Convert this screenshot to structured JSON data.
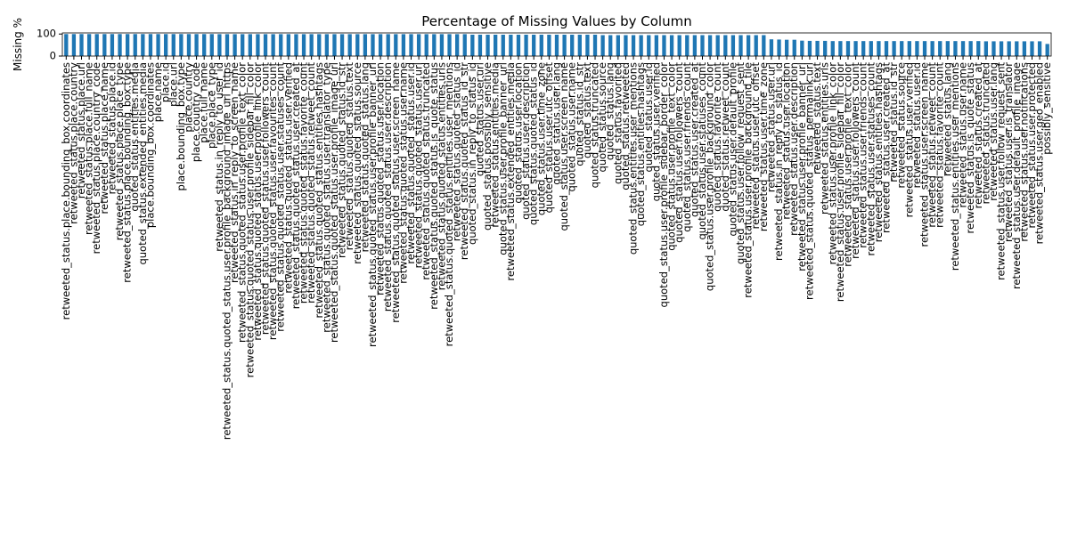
{
  "chart_data": {
    "type": "bar",
    "title": "Percentage of Missing Values by Column",
    "y_label": "Missing %",
    "color": "#1f77b4",
    "ylim": [
      0,
      105
    ],
    "yticks": [
      0,
      100
    ],
    "grid": false,
    "categories": [
      "retweeted_status.place.bounding_box.coordinates",
      "retweeted_status.place.country",
      "retweeted_status.place.url",
      "retweeted_status.place.full_name",
      "retweeted_status.place.country_code",
      "retweeted_status.place.name",
      "retweeted_status.place.id",
      "retweeted_status.place.place_type",
      "retweeted_status.place.bounding_box.type",
      "quoted_status.entities.media",
      "quoted_status.extended_entities.media",
      "place.bounding_box.coordinates",
      "place.name",
      "place.id",
      "place.url",
      "place.bounding_box.type",
      "place.country",
      "place.country_code",
      "place.full_name",
      "place.place_type",
      "retweeted_status.in_reply_to_user_id",
      "retweeted_status.quoted_status.user.profile_background_image_url_https",
      "retweeted_status.in_reply_to_screen_name",
      "retweeted_status.quoted_status.user.profile_text_color",
      "retweeted_status.quoted_status.user.profile_sidebar_fill_color",
      "retweeted_status.quoted_status.user.profile_link_color",
      "retweeted_status.quoted_status.user.followers_count",
      "retweeted_status.quoted_status.user.favourites_count",
      "retweeted_status.quoted_status.user.statuses_count",
      "retweeted_status.quoted_status.user.verified",
      "retweeted_status.quoted_status.user.created_at",
      "retweeted_status.quoted_status.favorite_count",
      "retweeted_status.quoted_status.retweet_count",
      "retweeted_status.quoted_status.entities.hashtags",
      "retweeted_status.quoted_status.user.translator_type",
      "retweeted_status.quoted_status.user.profile_image_url",
      "retweeted_status.quoted_status.id_str",
      "retweeted_status.quoted_status.text",
      "retweeted_status.quoted_status.source",
      "retweeted_status.quoted_status.lang",
      "retweeted_status.quoted_status.user.profile_banner_url",
      "retweeted_status.quoted_status.user.location",
      "retweeted_status.quoted_status.user.description",
      "retweeted_status.quoted_status.user.screen_name",
      "retweeted_status.quoted_status.user.name",
      "retweeted_status.quoted_status.user.id",
      "retweeted_status.quoted_status.user.url",
      "retweeted_status.quoted_status.truncated",
      "retweeted_status.quoted_status.is_quote_status",
      "retweeted_status.quoted_status.entities.urls",
      "retweeted_status.quoted_status.entities.user_mentions",
      "retweeted_status.quoted_status_id",
      "retweeted_status.quoted_status_id_str",
      "quoted_status.in_reply_to_status_id",
      "quoted_status.user.url",
      "quoted_status.possibly_sensitive",
      "retweeted_status.entities.media",
      "quoted_status.user.profile_banner_url",
      "retweeted_status.extended_entities.media",
      "quoted_status.user.location",
      "quoted_status.user.description",
      "quoted_status.quoted_status_id",
      "quoted_status.user.time_zone",
      "quoted_status.user.utc_offset",
      "quoted_status.user.lang",
      "quoted_status.user.screen_name",
      "quoted_status.user.name",
      "quoted_status.id_str",
      "quoted_status.text",
      "quoted_status.truncated",
      "quoted_status.source",
      "quoted_status.lang",
      "quoted_status.favorited",
      "quoted_status.retweeted",
      "quoted_status.entities.user_mentions",
      "quoted_status.entities.hashtags",
      "quoted_status.user.id",
      "quoted_status.user.verified",
      "quoted_status.user.profile_sidebar_border_color",
      "quoted_status.user.profile_text_color",
      "quoted_status.user.followers_count",
      "quoted_status.user.friends_count",
      "quoted_status.user.created_at",
      "quoted_status.user.statuses_count",
      "quoted_status.user.profile_background_color",
      "quoted_status.favorite_count",
      "quoted_status.retweet_count",
      "quoted_status.user.default_profile",
      "quoted_status.user.follow_request_sent",
      "retweeted_status.user.profile_background_tile",
      "retweeted_status.user.utc_offset",
      "retweeted_status.user.time_zone",
      "retweeted_status.user.url",
      "retweeted_status.in_reply_to_status_id",
      "retweeted_status.user.location",
      "retweeted_status.user.description",
      "retweeted_status.user.profile_banner_url",
      "retweeted_status.quoted_status_permalink.url",
      "retweeted_status.text",
      "retweeted_status.entities.urls",
      "retweeted_status.user.profile_link_color",
      "retweeted_status.user.profile_sidebar_fill_color",
      "retweeted_status.user.profile_text_color",
      "retweeted_status.user.followers_count",
      "retweeted_status.user.friends_count",
      "retweeted_status.user.statuses_count",
      "retweeted_status.entities.hashtags",
      "retweeted_status.user.created_at",
      "retweeted_status.id_str",
      "retweeted_status.source",
      "retweeted_status.user.verified",
      "retweeted_status.user.id",
      "retweeted_status.user.screen_name",
      "retweeted_status.retweet_count",
      "retweeted_status.favorite_count",
      "retweeted_status.lang",
      "retweeted_status.entities.user_mentions",
      "retweeted_status.user.name",
      "retweeted_status.is_quote_status",
      "retweeted_status.created_at",
      "retweeted_status.truncated",
      "retweeted_status.user.lang",
      "retweeted_status.user.follow_request_sent",
      "retweeted_status.user.is_translator",
      "retweeted_status.user.default_profile_image",
      "retweeted_status.user.notifications",
      "retweeted_status.user.protected",
      "retweeted_status.user.geo_enabled",
      "possibly_sensitive"
    ],
    "values": [
      99.9,
      99.9,
      99.9,
      99.9,
      99.9,
      99.9,
      99.9,
      99.9,
      99.9,
      99.9,
      99.9,
      99.9,
      99.9,
      99.9,
      99.9,
      99.9,
      99.9,
      99.9,
      99.9,
      99.9,
      99.5,
      99.5,
      99.5,
      99.5,
      99.5,
      99.5,
      99.5,
      99.5,
      99.5,
      99.5,
      99.5,
      99.5,
      99.5,
      99.5,
      99.5,
      99.5,
      99.5,
      99.5,
      99.5,
      99.5,
      99.5,
      99.5,
      99.5,
      99.5,
      99.5,
      99.5,
      99.5,
      99.5,
      99.5,
      99.5,
      99.5,
      99.5,
      99.5,
      97,
      97,
      97,
      97,
      97,
      97,
      97,
      97,
      97,
      97,
      97,
      97,
      97,
      97,
      97,
      97,
      97,
      95,
      95,
      95,
      95,
      95,
      95,
      95,
      95,
      95,
      95,
      95,
      95,
      95,
      95,
      95,
      95,
      95,
      95,
      95,
      95,
      95,
      95,
      76,
      75,
      74,
      74,
      70,
      69,
      69,
      69,
      68,
      68,
      68,
      68,
      68,
      68,
      68,
      68,
      68,
      68,
      68,
      68,
      68,
      68,
      68,
      68,
      68,
      68,
      68,
      68,
      67,
      67,
      67,
      67,
      67,
      67,
      67,
      67,
      55
    ]
  }
}
